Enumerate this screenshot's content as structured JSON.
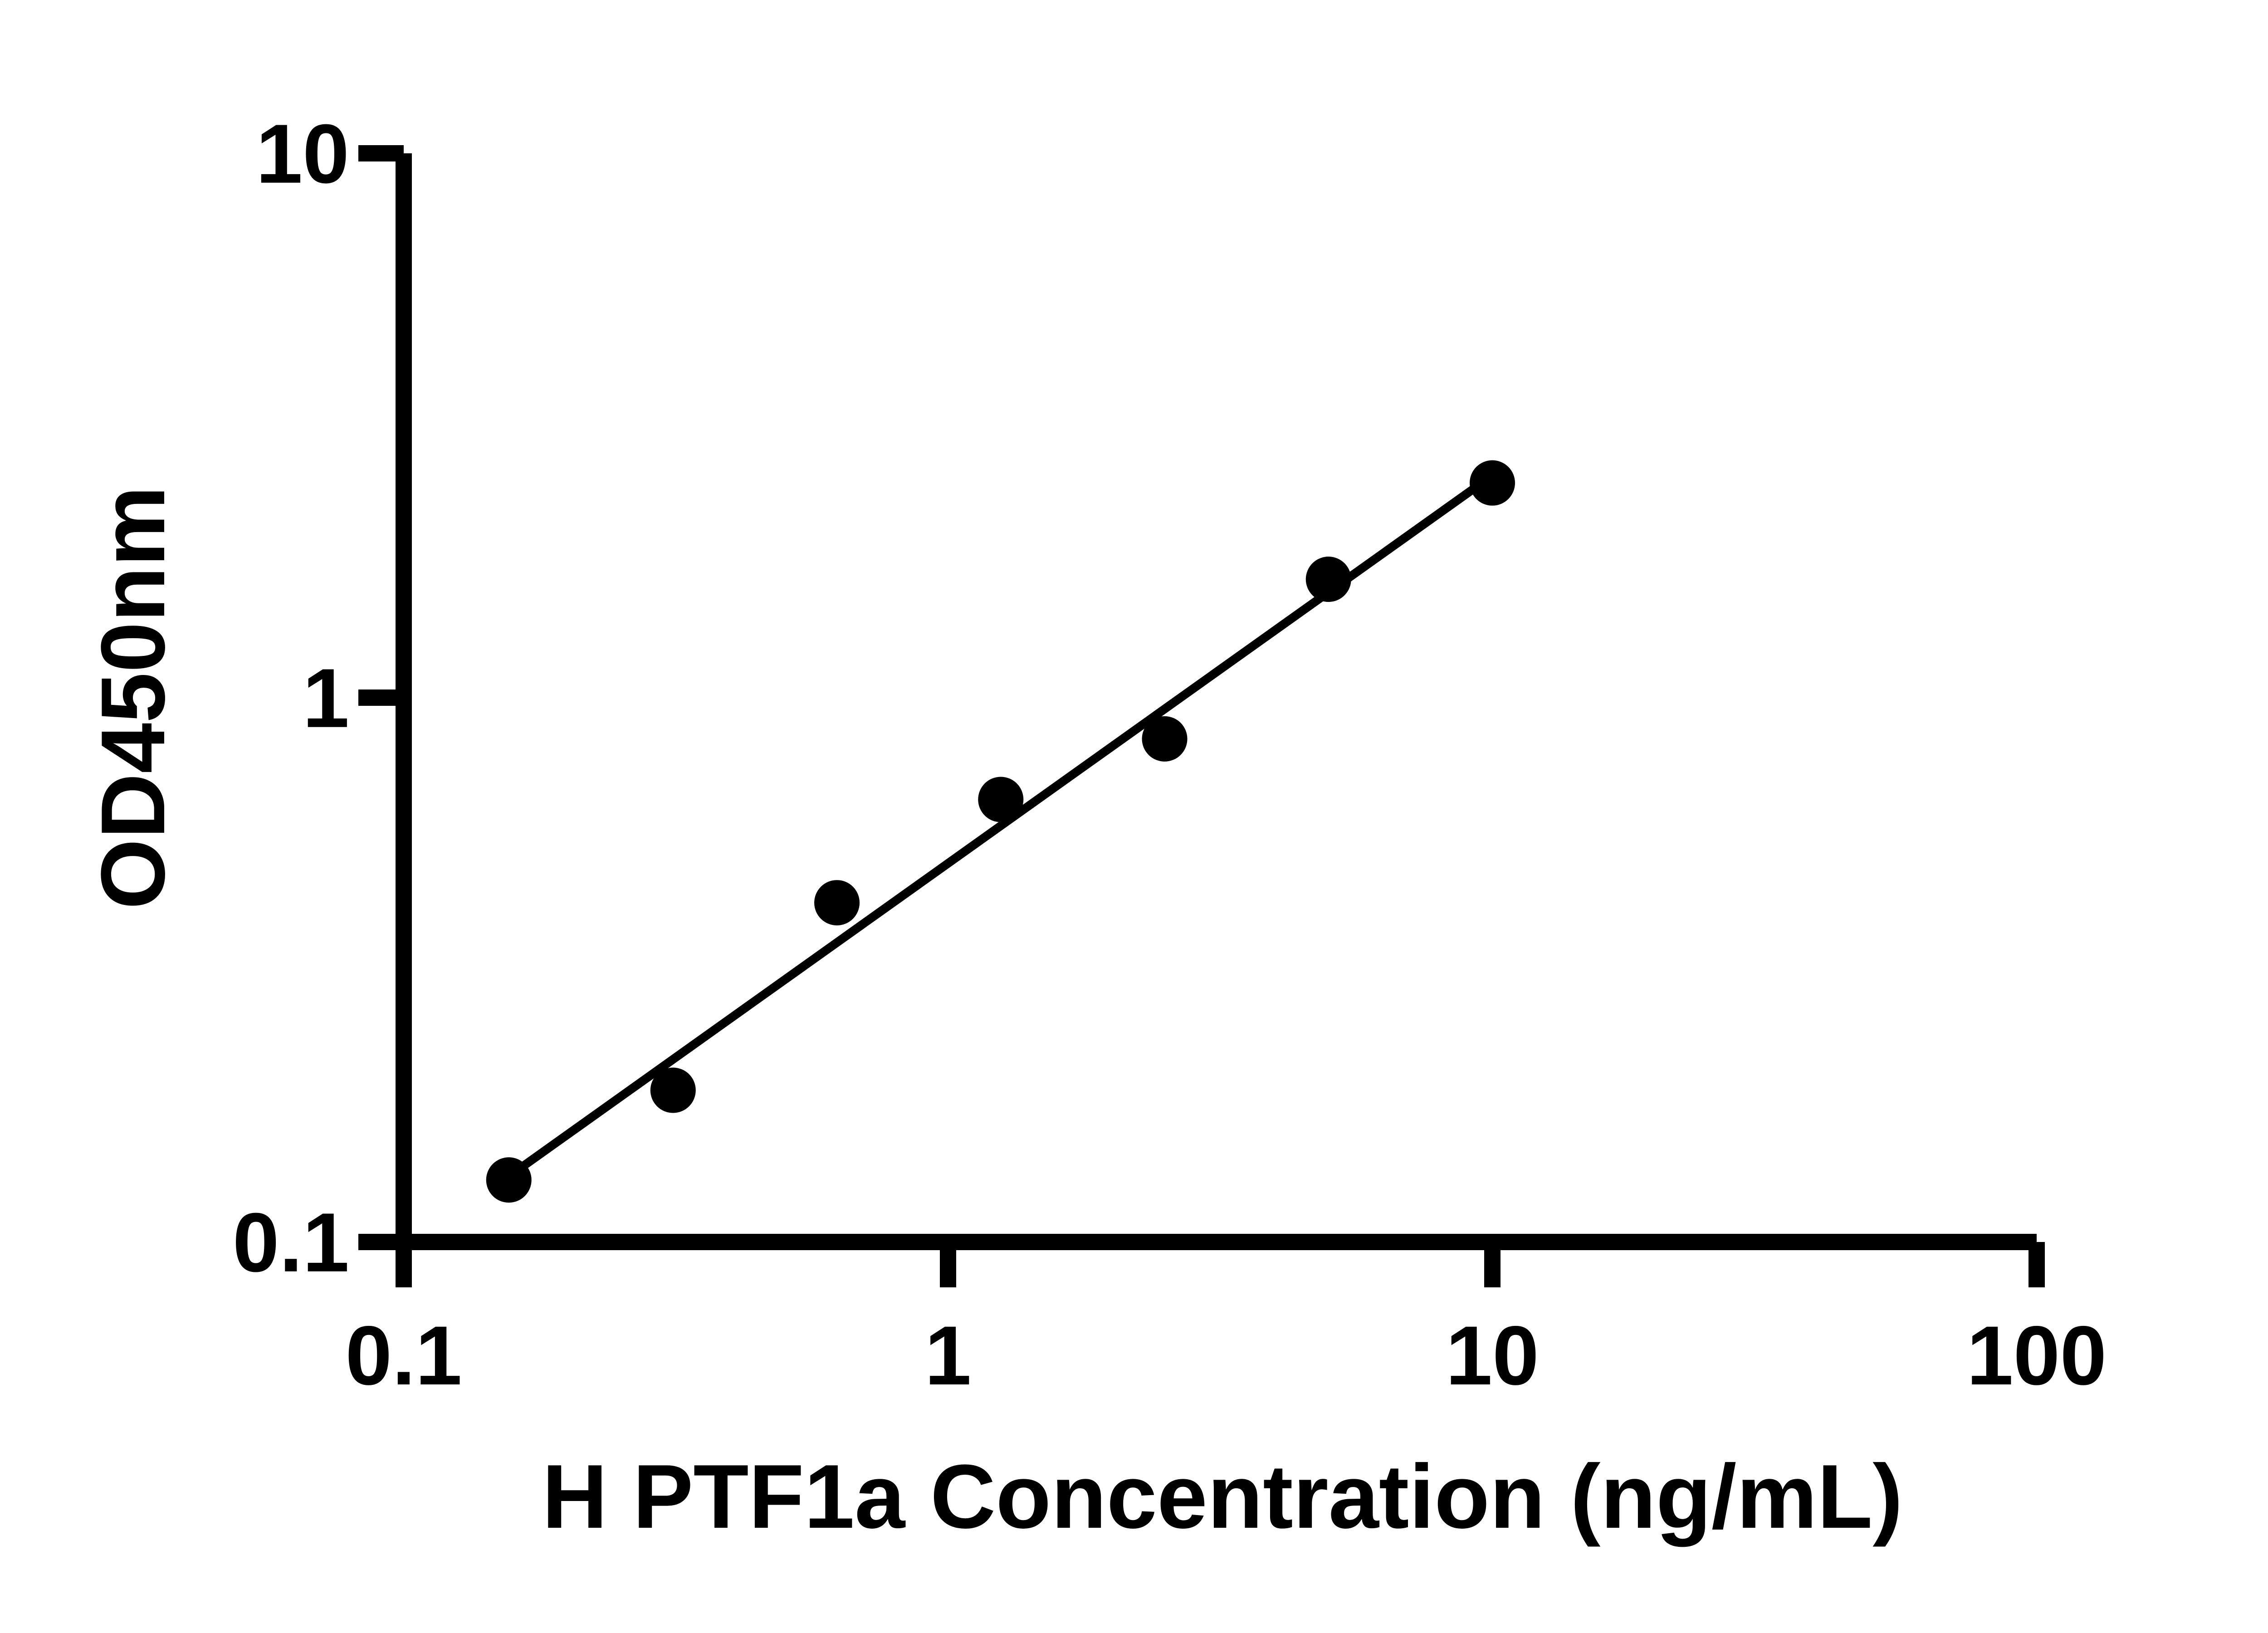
{
  "page": {
    "background": "#ffffff",
    "foreground": "#000000"
  },
  "chart_data": {
    "type": "scatter",
    "subtype": "elisa-standard-curve-log-log",
    "title": "",
    "xlabel": "H PTF1a Concentration (ng/mL)",
    "ylabel": "OD450nm",
    "x_scale": "log10",
    "y_scale": "log10",
    "xlim": [
      0.1,
      100
    ],
    "ylim": [
      0.1,
      10
    ],
    "grid": false,
    "legend": false,
    "x_ticks": [
      {
        "value": 0.1,
        "label": "0.1"
      },
      {
        "value": 1,
        "label": "1"
      },
      {
        "value": 10,
        "label": "10"
      },
      {
        "value": 100,
        "label": "100"
      }
    ],
    "y_ticks": [
      {
        "value": 0.1,
        "label": "0.1"
      },
      {
        "value": 1,
        "label": "1"
      },
      {
        "value": 10,
        "label": "10"
      }
    ],
    "series": [
      {
        "name": "standard-points",
        "type": "scatter",
        "marker": "filled-circle",
        "color": "#000000",
        "points": [
          {
            "x": 0.156,
            "y": 0.13
          },
          {
            "x": 0.3125,
            "y": 0.19
          },
          {
            "x": 0.625,
            "y": 0.42
          },
          {
            "x": 1.25,
            "y": 0.65
          },
          {
            "x": 2.5,
            "y": 0.84
          },
          {
            "x": 5,
            "y": 1.65
          },
          {
            "x": 10,
            "y": 2.48
          }
        ]
      },
      {
        "name": "fit-line",
        "type": "line",
        "color": "#000000",
        "points": [
          {
            "x": 0.156,
            "y": 0.132
          },
          {
            "x": 10,
            "y": 2.56
          }
        ]
      }
    ]
  }
}
